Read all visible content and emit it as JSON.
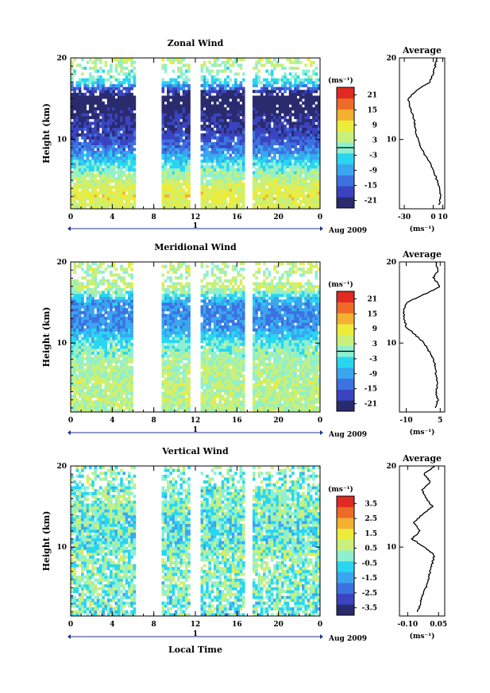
{
  "figure": {
    "xlabel": "Local Time",
    "ylabel": "Height (km)",
    "date_label": "Aug 2009",
    "day_label": "1",
    "avg_title": "Average",
    "unit": "(ms⁻¹)",
    "avg_unit": "(ms⁻¹)"
  },
  "colors": {
    "scale": [
      "#2a2a6e",
      "#3a44c0",
      "#3c72e0",
      "#3aa6f0",
      "#28d6f2",
      "#8ef0d0",
      "#c8f07a",
      "#ecec3a",
      "#f4b030",
      "#ee6a28",
      "#e02a22"
    ]
  },
  "chart_data": [
    {
      "type": "heatmap",
      "title": "Zonal Wind",
      "xlabel": "Local Time",
      "ylabel": "Height (km)",
      "xlim": [
        0,
        24
      ],
      "ylim": [
        1.5,
        20
      ],
      "x_ticks": [
        "0",
        "4",
        "8",
        "12",
        "16",
        "20",
        "0"
      ],
      "y_ticks": [
        "10",
        "20"
      ],
      "data_gaps_hours": [
        [
          6.2,
          8.7
        ],
        [
          11.6,
          12.6
        ],
        [
          16.8,
          17.4
        ]
      ],
      "colorbar": {
        "unit": "(ms⁻¹)",
        "range": [
          -24,
          24
        ],
        "ticks": [
          "21",
          "15",
          "9",
          "3",
          "-3",
          "-9",
          "-15",
          "-21"
        ],
        "marker": 0
      },
      "profile_height_km": [
        2,
        3,
        4,
        5,
        6,
        7,
        8,
        9,
        10,
        11,
        12,
        13,
        14,
        15,
        16,
        17,
        18,
        19,
        20
      ],
      "values": [
        6,
        8,
        7,
        4,
        1,
        -3,
        -8,
        -13,
        -16,
        -18,
        -19,
        -21,
        -24,
        -26,
        -18,
        -4,
        0,
        2,
        4
      ],
      "avg_panel": {
        "title": "Average",
        "xlim": [
          -35,
          12
        ],
        "x_ticks": [
          "-30",
          "0",
          "10"
        ],
        "y_ticks": [
          "10",
          "20"
        ],
        "unit": "(ms⁻¹)"
      }
    },
    {
      "type": "heatmap",
      "title": "Meridional Wind",
      "xlabel": "Local Time",
      "ylabel": "Height (km)",
      "xlim": [
        0,
        24
      ],
      "ylim": [
        1.5,
        20
      ],
      "x_ticks": [
        "0",
        "4",
        "8",
        "12",
        "16",
        "20",
        "0"
      ],
      "y_ticks": [
        "10",
        "20"
      ],
      "data_gaps_hours": [
        [
          6.0,
          8.8
        ],
        [
          11.6,
          12.6
        ],
        [
          16.8,
          17.4
        ]
      ],
      "colorbar": {
        "unit": "(ms⁻¹)",
        "range": [
          -24,
          24
        ],
        "ticks": [
          "21",
          "15",
          "9",
          "3",
          "-3",
          "-9",
          "-15",
          "-21"
        ],
        "marker": 0
      },
      "profile_height_km": [
        2,
        3,
        4,
        5,
        6,
        7,
        8,
        9,
        10,
        11,
        12,
        13,
        14,
        15,
        16,
        17,
        18,
        19,
        20
      ],
      "values": [
        3,
        4,
        3,
        4,
        3,
        3,
        2,
        0,
        -2,
        -6,
        -10,
        -11,
        -11,
        -10,
        -2,
        5,
        2,
        4,
        3
      ],
      "avg_panel": {
        "title": "Average",
        "xlim": [
          -13,
          7
        ],
        "x_ticks": [
          "-10",
          "5"
        ],
        "y_ticks": [
          "10",
          "20"
        ],
        "unit": "(ms⁻¹)"
      }
    },
    {
      "type": "heatmap",
      "title": "Vertical Wind",
      "xlabel": "Local Time",
      "ylabel": "Height (km)",
      "xlim": [
        0,
        24
      ],
      "ylim": [
        1.5,
        20
      ],
      "x_ticks": [
        "0",
        "4",
        "8",
        "12",
        "16",
        "20",
        "0"
      ],
      "y_ticks": [
        "10",
        "20"
      ],
      "data_gaps_hours": [
        [
          6.2,
          8.7
        ],
        [
          11.6,
          12.6
        ],
        [
          16.8,
          17.4
        ]
      ],
      "colorbar": {
        "unit": "(ms⁻¹)",
        "range": [
          -4,
          4
        ],
        "ticks": [
          "3.5",
          "2.5",
          "1.5",
          "0.5",
          "-0.5",
          "-1.5",
          "-2.5",
          "-3.5"
        ]
      },
      "profile_height_km": [
        2,
        3,
        4,
        5,
        6,
        7,
        8,
        9,
        10,
        11,
        12,
        13,
        14,
        15,
        16,
        17,
        18,
        19,
        20
      ],
      "values": [
        -0.05,
        -0.04,
        -0.03,
        -0.01,
        0.0,
        0.01,
        0.02,
        0.03,
        -0.02,
        -0.08,
        -0.04,
        -0.07,
        -0.03,
        0.02,
        -0.01,
        -0.03,
        0.01,
        -0.02,
        0.03
      ],
      "avg_panel": {
        "title": "Average",
        "xlim": [
          -0.14,
          0.08
        ],
        "x_ticks": [
          "-0.10",
          "0.05"
        ],
        "y_ticks": [
          "10",
          "20"
        ],
        "unit": "(ms⁻¹)"
      }
    }
  ]
}
